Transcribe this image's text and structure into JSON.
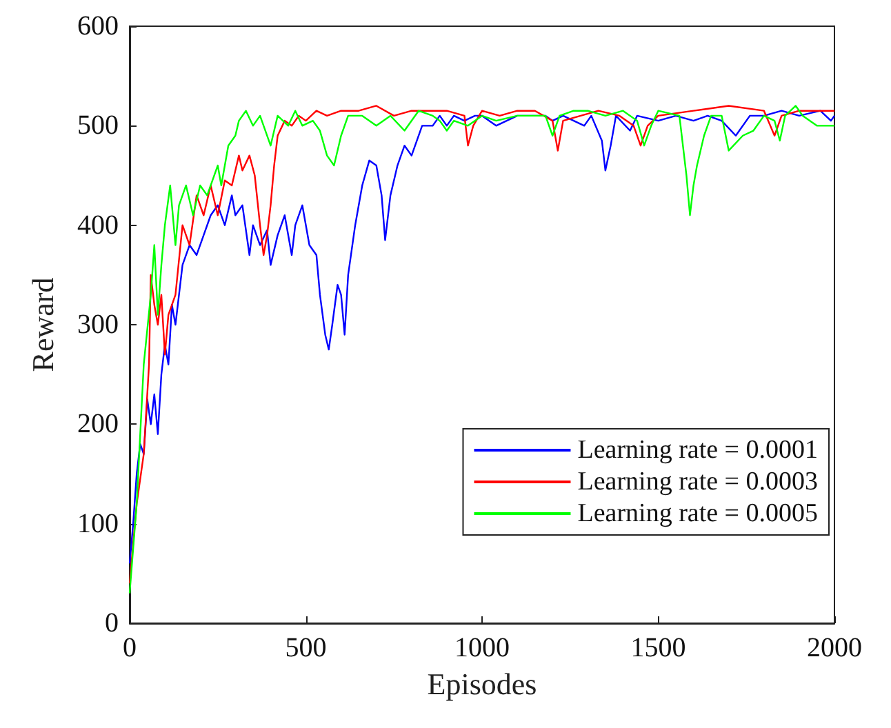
{
  "chart_data": {
    "type": "line",
    "xlabel": "Episodes",
    "ylabel": "Reward",
    "xlim": [
      0,
      2000
    ],
    "xticks": [
      0,
      500,
      1000,
      1500,
      2000
    ],
    "ylim": [
      0,
      600
    ],
    "yticks": [
      0,
      100,
      200,
      300,
      400,
      500,
      600
    ],
    "grid": false,
    "legend": "bottom right",
    "marker": "none",
    "line_style": "solid",
    "series": [
      {
        "name": "Learning rate = 0.0001",
        "color": "#0000ff",
        "x": [
          0,
          10,
          20,
          30,
          40,
          50,
          60,
          70,
          80,
          90,
          100,
          110,
          120,
          130,
          150,
          170,
          190,
          210,
          230,
          250,
          270,
          290,
          300,
          320,
          340,
          350,
          370,
          390,
          400,
          420,
          440,
          460,
          470,
          490,
          510,
          530,
          540,
          555,
          565,
          575,
          590,
          600,
          610,
          620,
          640,
          660,
          680,
          700,
          715,
          725,
          740,
          760,
          780,
          800,
          830,
          860,
          880,
          900,
          920,
          950,
          980,
          1000,
          1040,
          1100,
          1180,
          1200,
          1230,
          1290,
          1310,
          1340,
          1350,
          1365,
          1380,
          1420,
          1440,
          1500,
          1550,
          1600,
          1640,
          1680,
          1720,
          1760,
          1800,
          1850,
          1900,
          1960,
          1990,
          2000
        ],
        "values": [
          60,
          100,
          150,
          180,
          170,
          225,
          200,
          230,
          190,
          250,
          280,
          260,
          320,
          300,
          360,
          380,
          370,
          390,
          410,
          420,
          400,
          430,
          410,
          420,
          370,
          400,
          380,
          395,
          360,
          390,
          410,
          370,
          400,
          420,
          380,
          370,
          330,
          290,
          275,
          300,
          340,
          330,
          290,
          350,
          400,
          440,
          465,
          460,
          430,
          385,
          430,
          460,
          480,
          470,
          500,
          500,
          510,
          500,
          510,
          505,
          510,
          510,
          500,
          510,
          510,
          505,
          510,
          500,
          510,
          485,
          455,
          480,
          510,
          495,
          510,
          505,
          510,
          505,
          510,
          505,
          490,
          510,
          510,
          515,
          510,
          515,
          505,
          510
        ]
      },
      {
        "name": "Learning rate = 0.0003",
        "color": "#ff0000",
        "x": [
          0,
          20,
          40,
          55,
          60,
          70,
          80,
          90,
          100,
          110,
          130,
          150,
          170,
          190,
          210,
          230,
          250,
          270,
          290,
          310,
          320,
          340,
          355,
          370,
          380,
          390,
          400,
          410,
          420,
          440,
          460,
          480,
          500,
          530,
          560,
          600,
          650,
          700,
          750,
          800,
          900,
          950,
          960,
          975,
          1000,
          1050,
          1100,
          1150,
          1200,
          1215,
          1230,
          1280,
          1330,
          1390,
          1430,
          1450,
          1470,
          1500,
          1600,
          1700,
          1800,
          1830,
          1850,
          1900,
          2000
        ],
        "values": [
          40,
          120,
          170,
          260,
          350,
          320,
          300,
          330,
          270,
          310,
          330,
          400,
          380,
          430,
          410,
          440,
          410,
          445,
          440,
          470,
          455,
          470,
          450,
          400,
          370,
          390,
          420,
          460,
          490,
          505,
          500,
          510,
          505,
          515,
          510,
          515,
          515,
          520,
          510,
          515,
          515,
          510,
          480,
          500,
          515,
          510,
          515,
          515,
          505,
          475,
          505,
          510,
          515,
          510,
          500,
          480,
          500,
          510,
          515,
          520,
          515,
          490,
          510,
          515,
          515
        ]
      },
      {
        "name": "Learning rate = 0.0005",
        "color": "#00ff00",
        "x": [
          0,
          20,
          40,
          60,
          70,
          80,
          90,
          100,
          115,
          130,
          140,
          160,
          180,
          200,
          220,
          250,
          260,
          280,
          300,
          310,
          330,
          350,
          370,
          400,
          420,
          450,
          470,
          490,
          520,
          540,
          560,
          580,
          600,
          620,
          660,
          700,
          740,
          780,
          820,
          860,
          880,
          900,
          920,
          960,
          1000,
          1040,
          1100,
          1150,
          1180,
          1200,
          1220,
          1260,
          1300,
          1350,
          1400,
          1440,
          1460,
          1480,
          1500,
          1560,
          1580,
          1590,
          1600,
          1610,
          1630,
          1650,
          1680,
          1700,
          1740,
          1770,
          1800,
          1830,
          1845,
          1860,
          1890,
          1910,
          1950,
          1980,
          2000
        ],
        "values": [
          30,
          120,
          260,
          330,
          380,
          310,
          360,
          400,
          440,
          380,
          420,
          440,
          410,
          440,
          430,
          460,
          440,
          480,
          490,
          505,
          515,
          500,
          510,
          480,
          510,
          500,
          515,
          500,
          505,
          495,
          470,
          460,
          490,
          510,
          510,
          500,
          510,
          495,
          515,
          510,
          505,
          495,
          505,
          500,
          510,
          505,
          510,
          510,
          510,
          490,
          510,
          515,
          515,
          510,
          515,
          505,
          480,
          500,
          515,
          510,
          450,
          410,
          440,
          460,
          490,
          510,
          510,
          475,
          490,
          495,
          510,
          505,
          485,
          510,
          520,
          510,
          500,
          500,
          500
        ]
      }
    ]
  }
}
